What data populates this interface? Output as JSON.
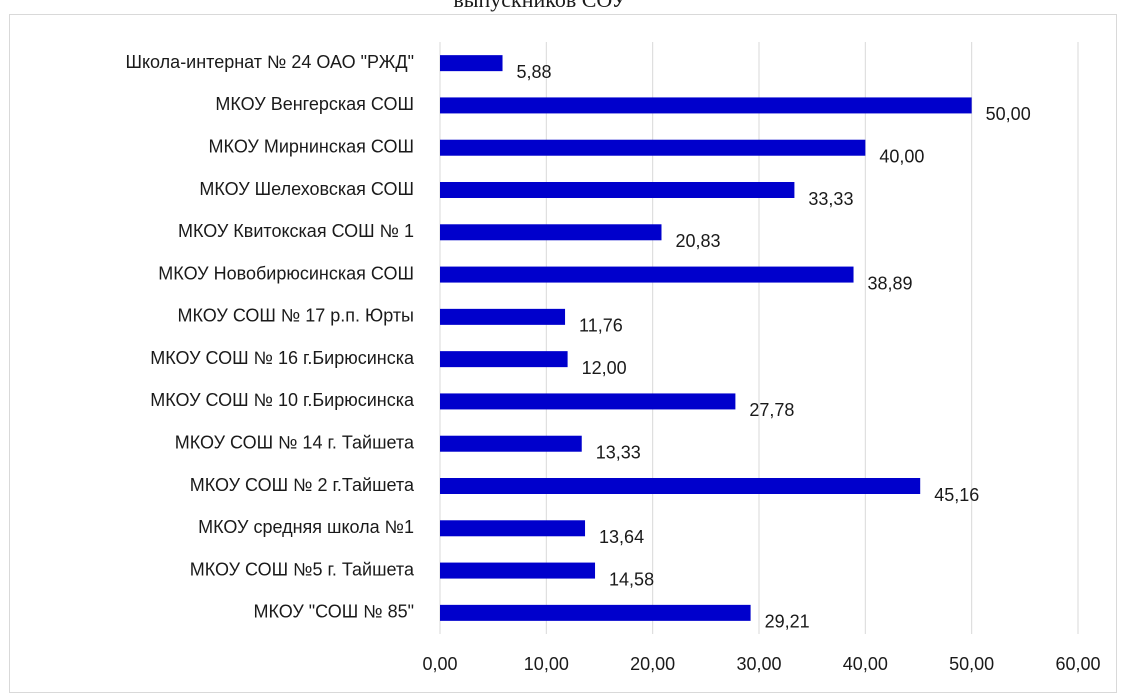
{
  "chart_data": {
    "type": "bar",
    "orientation": "horizontal",
    "title": "выпускников СОУ",
    "categories": [
      "Школа-интернат № 24 ОАО \"РЖД\"",
      "МКОУ Венгерская СОШ",
      "МКОУ Мирнинская СОШ",
      "МКОУ Шелеховская СОШ",
      "МКОУ Квитокская СОШ № 1",
      "МКОУ Новобирюсинская СОШ",
      "МКОУ СОШ № 17 р.п. Юрты",
      "МКОУ СОШ № 16 г.Бирюсинска",
      "МКОУ СОШ № 10 г.Бирюсинска",
      "МКОУ СОШ № 14 г. Тайшета",
      "МКОУ СОШ № 2 г.Тайшета",
      "МКОУ средняя школа №1",
      "МКОУ СОШ №5 г. Тайшета",
      "МКОУ \"СОШ № 85\""
    ],
    "values": [
      5.88,
      50,
      40,
      33.33,
      20.83,
      38.89,
      11.76,
      12,
      27.78,
      13.33,
      45.16,
      13.64,
      14.58,
      29.21
    ],
    "value_labels": [
      "5,88",
      "50,00",
      "40,00",
      "33,33",
      "20,83",
      "38,89",
      "11,76",
      "12,00",
      "27,78",
      "13,33",
      "45,16",
      "13,64",
      "14,58",
      "29,21"
    ],
    "color": "#0000cc",
    "xlim": [
      0,
      60
    ],
    "xticks": [
      {
        "value": 0,
        "label": "0,00"
      },
      {
        "value": 10,
        "label": "10,00"
      },
      {
        "value": 20,
        "label": "20,00"
      },
      {
        "value": 30,
        "label": "30,00"
      },
      {
        "value": 40,
        "label": "40,00"
      },
      {
        "value": 50,
        "label": "50,00"
      },
      {
        "value": 60,
        "label": "60,00"
      }
    ],
    "grid": true
  }
}
